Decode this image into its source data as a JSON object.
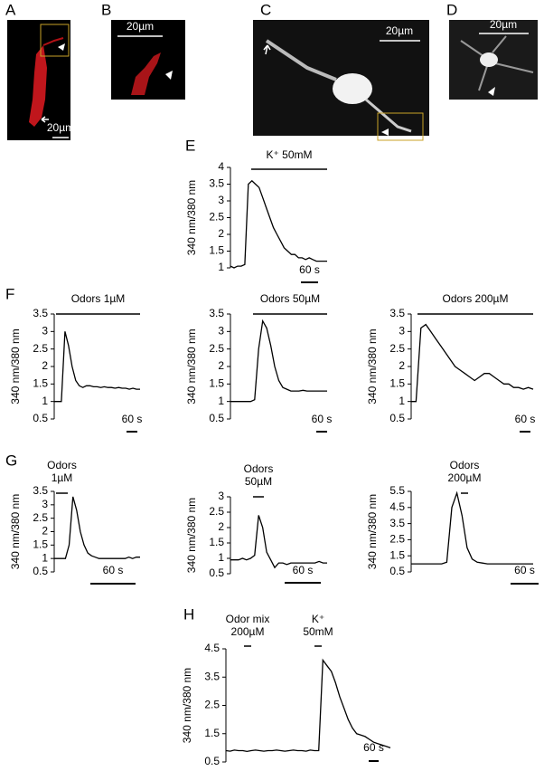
{
  "image_panels": [
    {
      "label": "A",
      "scale_bar": "20µm"
    },
    {
      "label": "B",
      "scale_bar": "20µm"
    },
    {
      "label": "C",
      "scale_bar": "20µm"
    },
    {
      "label": "D",
      "scale_bar": "20µm"
    }
  ],
  "chart_data": [
    {
      "type": "line",
      "panel": "E",
      "ylabel": "340 nm/380 nm",
      "stimuli": [
        {
          "lines": [
            "K⁺ 50mM"
          ]
        }
      ],
      "scale_bar": "60 s",
      "ylim": [
        1,
        4
      ],
      "yticks": [
        1,
        1.5,
        2,
        2.5,
        3,
        3.5,
        4
      ],
      "values": [
        1.05,
        1.0,
        1.05,
        1.05,
        1.1,
        3.5,
        3.6,
        3.5,
        3.4,
        3.1,
        2.8,
        2.5,
        2.2,
        2.0,
        1.8,
        1.6,
        1.5,
        1.4,
        1.4,
        1.3,
        1.3,
        1.25,
        1.3,
        1.25,
        1.2,
        1.2,
        1.2,
        1.2
      ]
    },
    {
      "type": "line",
      "panel": "F",
      "ylabel": "340 nm/380 nm",
      "stimuli": [
        {
          "lines": [
            "Odors 1µM"
          ]
        }
      ],
      "scale_bar": "60 s",
      "ylim": [
        0.5,
        3.5
      ],
      "yticks": [
        0.5,
        1,
        1.5,
        2,
        2.5,
        3,
        3.5
      ],
      "values": [
        1,
        1,
        1,
        3.0,
        2.6,
        2.0,
        1.6,
        1.45,
        1.4,
        1.45,
        1.45,
        1.42,
        1.42,
        1.4,
        1.42,
        1.4,
        1.4,
        1.38,
        1.4,
        1.38,
        1.38,
        1.35,
        1.38,
        1.35,
        1.35
      ]
    },
    {
      "type": "line",
      "ylabel": "340 nm/380 nm",
      "stimuli": [
        {
          "lines": [
            "Odors 50µM"
          ]
        }
      ],
      "scale_bar": "60 s",
      "ylim": [
        0.5,
        3.5
      ],
      "yticks": [
        0.5,
        1,
        1.5,
        2,
        2.5,
        3,
        3.5
      ],
      "values": [
        1,
        1,
        1,
        1,
        1,
        1,
        1.05,
        2.5,
        3.3,
        3.1,
        2.6,
        2.0,
        1.6,
        1.4,
        1.35,
        1.3,
        1.3,
        1.3,
        1.32,
        1.3,
        1.3,
        1.3,
        1.3,
        1.3,
        1.3
      ]
    },
    {
      "type": "line",
      "ylabel": "340 nm/380 nm",
      "stimuli": [
        {
          "lines": [
            "Odors 200µM"
          ]
        }
      ],
      "scale_bar": "60 s",
      "ylim": [
        0.5,
        3.5
      ],
      "yticks": [
        0.5,
        1,
        1.5,
        2,
        2.5,
        3,
        3.5
      ],
      "values": [
        1,
        1,
        3.1,
        3.2,
        3.0,
        2.8,
        2.6,
        2.4,
        2.2,
        2.0,
        1.9,
        1.8,
        1.7,
        1.6,
        1.7,
        1.8,
        1.8,
        1.7,
        1.6,
        1.5,
        1.5,
        1.4,
        1.4,
        1.35,
        1.4,
        1.35
      ]
    },
    {
      "type": "line",
      "panel": "G",
      "ylabel": "340 nm/380 nm",
      "stimuli": [
        {
          "lines": [
            "Odors",
            "1µM"
          ]
        }
      ],
      "scale_bar": "60 s",
      "ylim": [
        0.5,
        3.5
      ],
      "yticks": [
        0.5,
        1,
        1.5,
        2,
        2.5,
        3,
        3.5
      ],
      "values": [
        1,
        1,
        1,
        1,
        1.5,
        3.3,
        2.8,
        2.0,
        1.5,
        1.2,
        1.1,
        1.05,
        1,
        1,
        1,
        1,
        1,
        1,
        1,
        1,
        1.05,
        1,
        1.05,
        1.05
      ]
    },
    {
      "type": "line",
      "ylabel": "340 nm/380 nm",
      "stimuli": [
        {
          "lines": [
            "Odors",
            "50µM"
          ]
        }
      ],
      "scale_bar": "60 s",
      "ylim": [
        0.5,
        3
      ],
      "yticks": [
        0.5,
        1,
        1.5,
        2,
        2.5,
        3
      ],
      "values": [
        0.95,
        0.95,
        0.95,
        1,
        0.95,
        1,
        1.1,
        2.4,
        2.0,
        1.2,
        0.95,
        0.7,
        0.85,
        0.85,
        0.8,
        0.85,
        0.85,
        0.85,
        0.85,
        0.85,
        0.85,
        0.85,
        0.9,
        0.85,
        0.85
      ]
    },
    {
      "type": "line",
      "ylabel": "340 nm/380 nm",
      "stimuli": [
        {
          "lines": [
            "Odors",
            "200µM"
          ]
        }
      ],
      "scale_bar": "60 s",
      "ylim": [
        0.5,
        5.5
      ],
      "yticks": [
        0.5,
        1.5,
        2.5,
        3.5,
        4.5,
        5.5
      ],
      "values": [
        1,
        1,
        1,
        1,
        1,
        1,
        1,
        1.1,
        4.5,
        5.4,
        4.0,
        2.0,
        1.3,
        1.1,
        1.05,
        1,
        1,
        1,
        1,
        1,
        1,
        1,
        1,
        1,
        1
      ]
    },
    {
      "type": "line",
      "panel": "H",
      "ylabel": "340 nm/380 nm",
      "stimuli": [
        {
          "lines": [
            "Odor mix",
            "200µM"
          ]
        },
        {
          "lines": [
            "K⁺",
            "50mM"
          ]
        }
      ],
      "scale_bar": "60 s",
      "ylim": [
        0.5,
        4.5
      ],
      "yticks": [
        0.5,
        1.5,
        2.5,
        3.5,
        4.5
      ],
      "values": [
        0.9,
        0.88,
        0.92,
        0.9,
        0.9,
        0.87,
        0.9,
        0.92,
        0.9,
        0.88,
        0.9,
        0.9,
        0.92,
        0.9,
        0.88,
        0.9,
        0.92,
        0.9,
        0.9,
        0.88,
        0.92,
        0.9,
        0.9,
        4.1,
        3.9,
        3.7,
        3.3,
        2.8,
        2.4,
        2.0,
        1.7,
        1.5,
        1.45,
        1.4,
        1.3,
        1.2,
        1.15,
        1.1,
        1.05,
        1.0
      ]
    }
  ]
}
